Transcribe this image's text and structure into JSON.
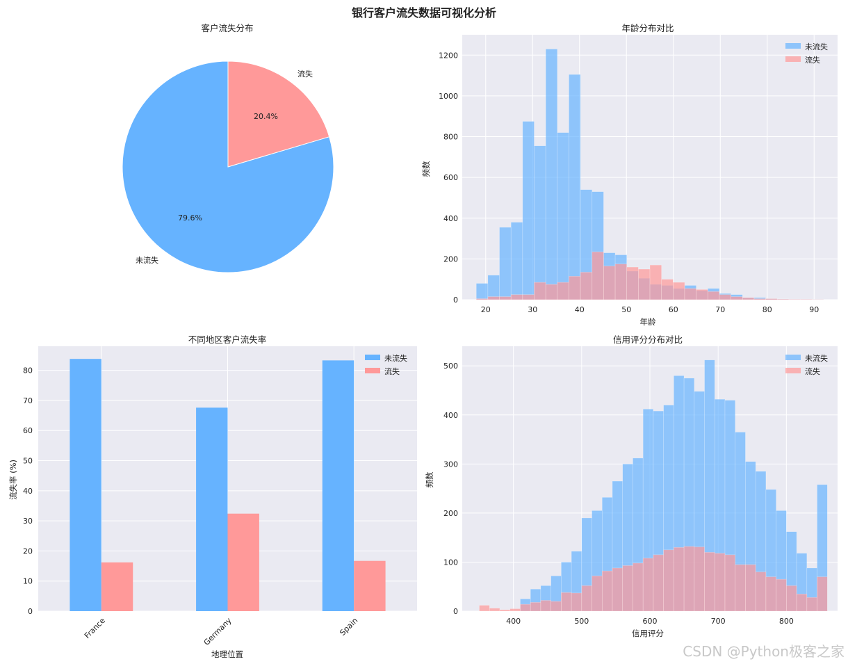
{
  "figure": {
    "title": "银行客户流失数据可视化分析",
    "watermark": "CSDN @Python极客之家"
  },
  "colors": {
    "retained": "#66b3ff",
    "churned": "#ff9999",
    "axes_bg": "#eaeaf2",
    "grid": "#ffffff"
  },
  "chart_data": [
    {
      "id": "pie",
      "type": "pie",
      "title": "客户流失分布",
      "labels": [
        "未流失",
        "流失"
      ],
      "values": [
        79.6,
        20.4
      ],
      "pct_labels": [
        "79.6%",
        "20.4%"
      ],
      "start_angle_deg": 90
    },
    {
      "id": "age",
      "type": "bar",
      "subtype": "histogram",
      "title": "年龄分布对比",
      "xlabel": "年龄",
      "ylabel": "频数",
      "xlim": [
        15,
        95
      ],
      "ylim": [
        0,
        1300
      ],
      "xticks": [
        20,
        30,
        40,
        50,
        60,
        70,
        80,
        90
      ],
      "yticks": [
        0,
        200,
        400,
        600,
        800,
        1000,
        1200
      ],
      "bin_start": 18,
      "bin_width": 2.467,
      "legend": "top-right",
      "series": [
        {
          "name": "未流失",
          "values": [
            80,
            120,
            355,
            380,
            875,
            755,
            1230,
            820,
            1105,
            540,
            530,
            230,
            220,
            140,
            105,
            75,
            70,
            55,
            70,
            45,
            55,
            30,
            25,
            10,
            10,
            5,
            3,
            2,
            2,
            1
          ]
        },
        {
          "name": "流失",
          "values": [
            5,
            15,
            15,
            25,
            25,
            85,
            75,
            85,
            115,
            135,
            235,
            165,
            175,
            160,
            150,
            170,
            100,
            85,
            55,
            50,
            40,
            25,
            15,
            10,
            5,
            5,
            3,
            2,
            2,
            1
          ]
        }
      ]
    },
    {
      "id": "geo",
      "type": "bar",
      "title": "不同地区客户流失率",
      "xlabel": "地理位置",
      "ylabel": "流失率 (%)",
      "categories": [
        "France",
        "Germany",
        "Spain"
      ],
      "ylim": [
        0,
        88
      ],
      "yticks": [
        0,
        10,
        20,
        30,
        40,
        50,
        60,
        70,
        80
      ],
      "legend": "top-right",
      "series": [
        {
          "name": "未流失",
          "values": [
            83.8,
            67.6,
            83.3
          ]
        },
        {
          "name": "流失",
          "values": [
            16.2,
            32.4,
            16.7
          ]
        }
      ]
    },
    {
      "id": "credit",
      "type": "bar",
      "subtype": "histogram",
      "title": "信用评分分布对比",
      "xlabel": "信用评分",
      "ylabel": "频数",
      "xlim": [
        325,
        875
      ],
      "ylim": [
        0,
        540
      ],
      "xticks": [
        400,
        500,
        600,
        700,
        800
      ],
      "yticks": [
        0,
        100,
        200,
        300,
        400,
        500
      ],
      "bin_start": 350,
      "bin_width": 15,
      "legend": "top-right",
      "series": [
        {
          "name": "未流失",
          "values": [
            0,
            0,
            0,
            0,
            25,
            45,
            52,
            72,
            100,
            122,
            190,
            205,
            232,
            265,
            300,
            312,
            412,
            408,
            420,
            480,
            475,
            448,
            512,
            432,
            430,
            365,
            305,
            285,
            248,
            205,
            162,
            118,
            88,
            258
          ]
        },
        {
          "name": "流失",
          "values": [
            12,
            6,
            3,
            5,
            14,
            18,
            22,
            20,
            38,
            37,
            52,
            72,
            82,
            88,
            93,
            98,
            108,
            115,
            125,
            130,
            132,
            131,
            120,
            118,
            115,
            95,
            95,
            80,
            70,
            65,
            52,
            35,
            28,
            70
          ]
        }
      ]
    }
  ]
}
